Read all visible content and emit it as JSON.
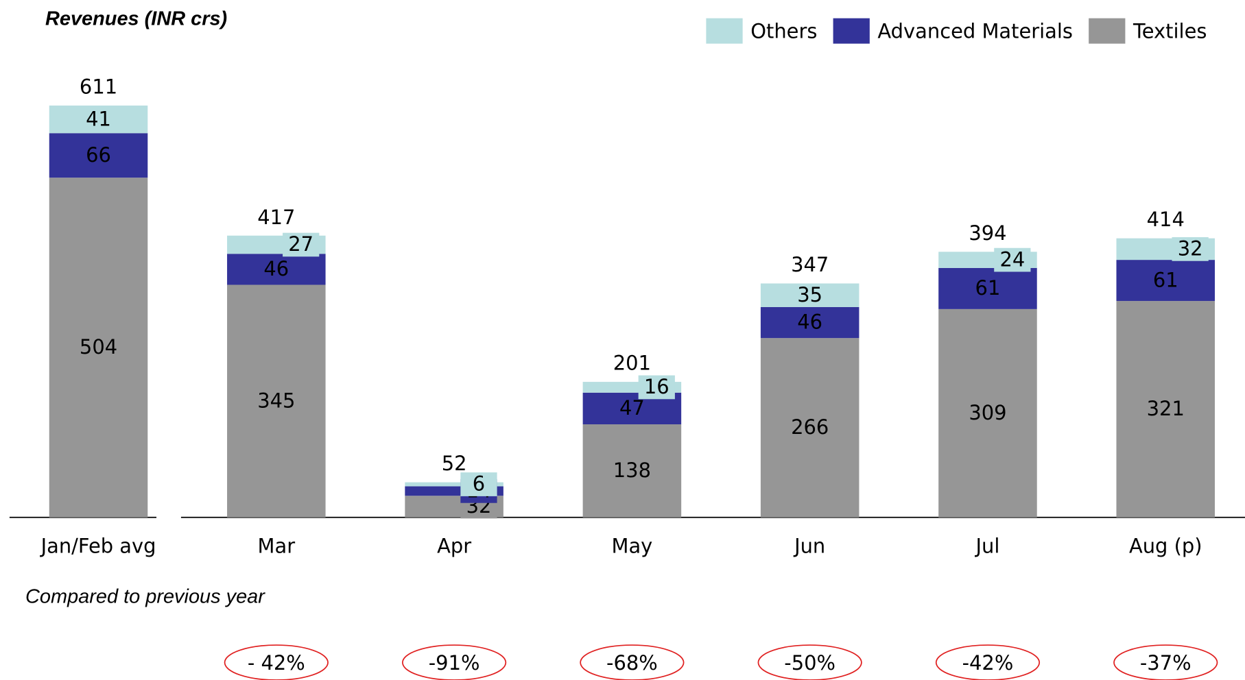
{
  "chart_data": {
    "type": "bar",
    "stacked": true,
    "title": "Revenues (INR crs)",
    "categories": [
      "Jan/Feb avg",
      "Mar",
      "Apr",
      "May",
      "Jun",
      "Jul",
      "Aug (p)"
    ],
    "series": [
      {
        "name": "Textiles",
        "color": "#969696",
        "values": [
          504,
          345,
          32,
          138,
          266,
          309,
          321
        ]
      },
      {
        "name": "Advanced Materials",
        "color": "#333399",
        "values": [
          66,
          46,
          14,
          47,
          46,
          61,
          61
        ]
      },
      {
        "name": "Others",
        "color": "#b7dee0",
        "values": [
          41,
          27,
          6,
          16,
          35,
          24,
          32
        ]
      }
    ],
    "totals": [
      611,
      417,
      52,
      201,
      347,
      394,
      414
    ],
    "ylim": [
      0,
      700
    ],
    "legend": "top-right",
    "comparison": {
      "label": "Compared to previous year",
      "values": [
        null,
        -42,
        -91,
        -68,
        -50,
        -42,
        -37
      ],
      "value_labels": [
        null,
        "- 42%",
        "-91%",
        "-68%",
        "-50%",
        "-42%",
        "-37%"
      ],
      "color": "#e02020"
    }
  }
}
